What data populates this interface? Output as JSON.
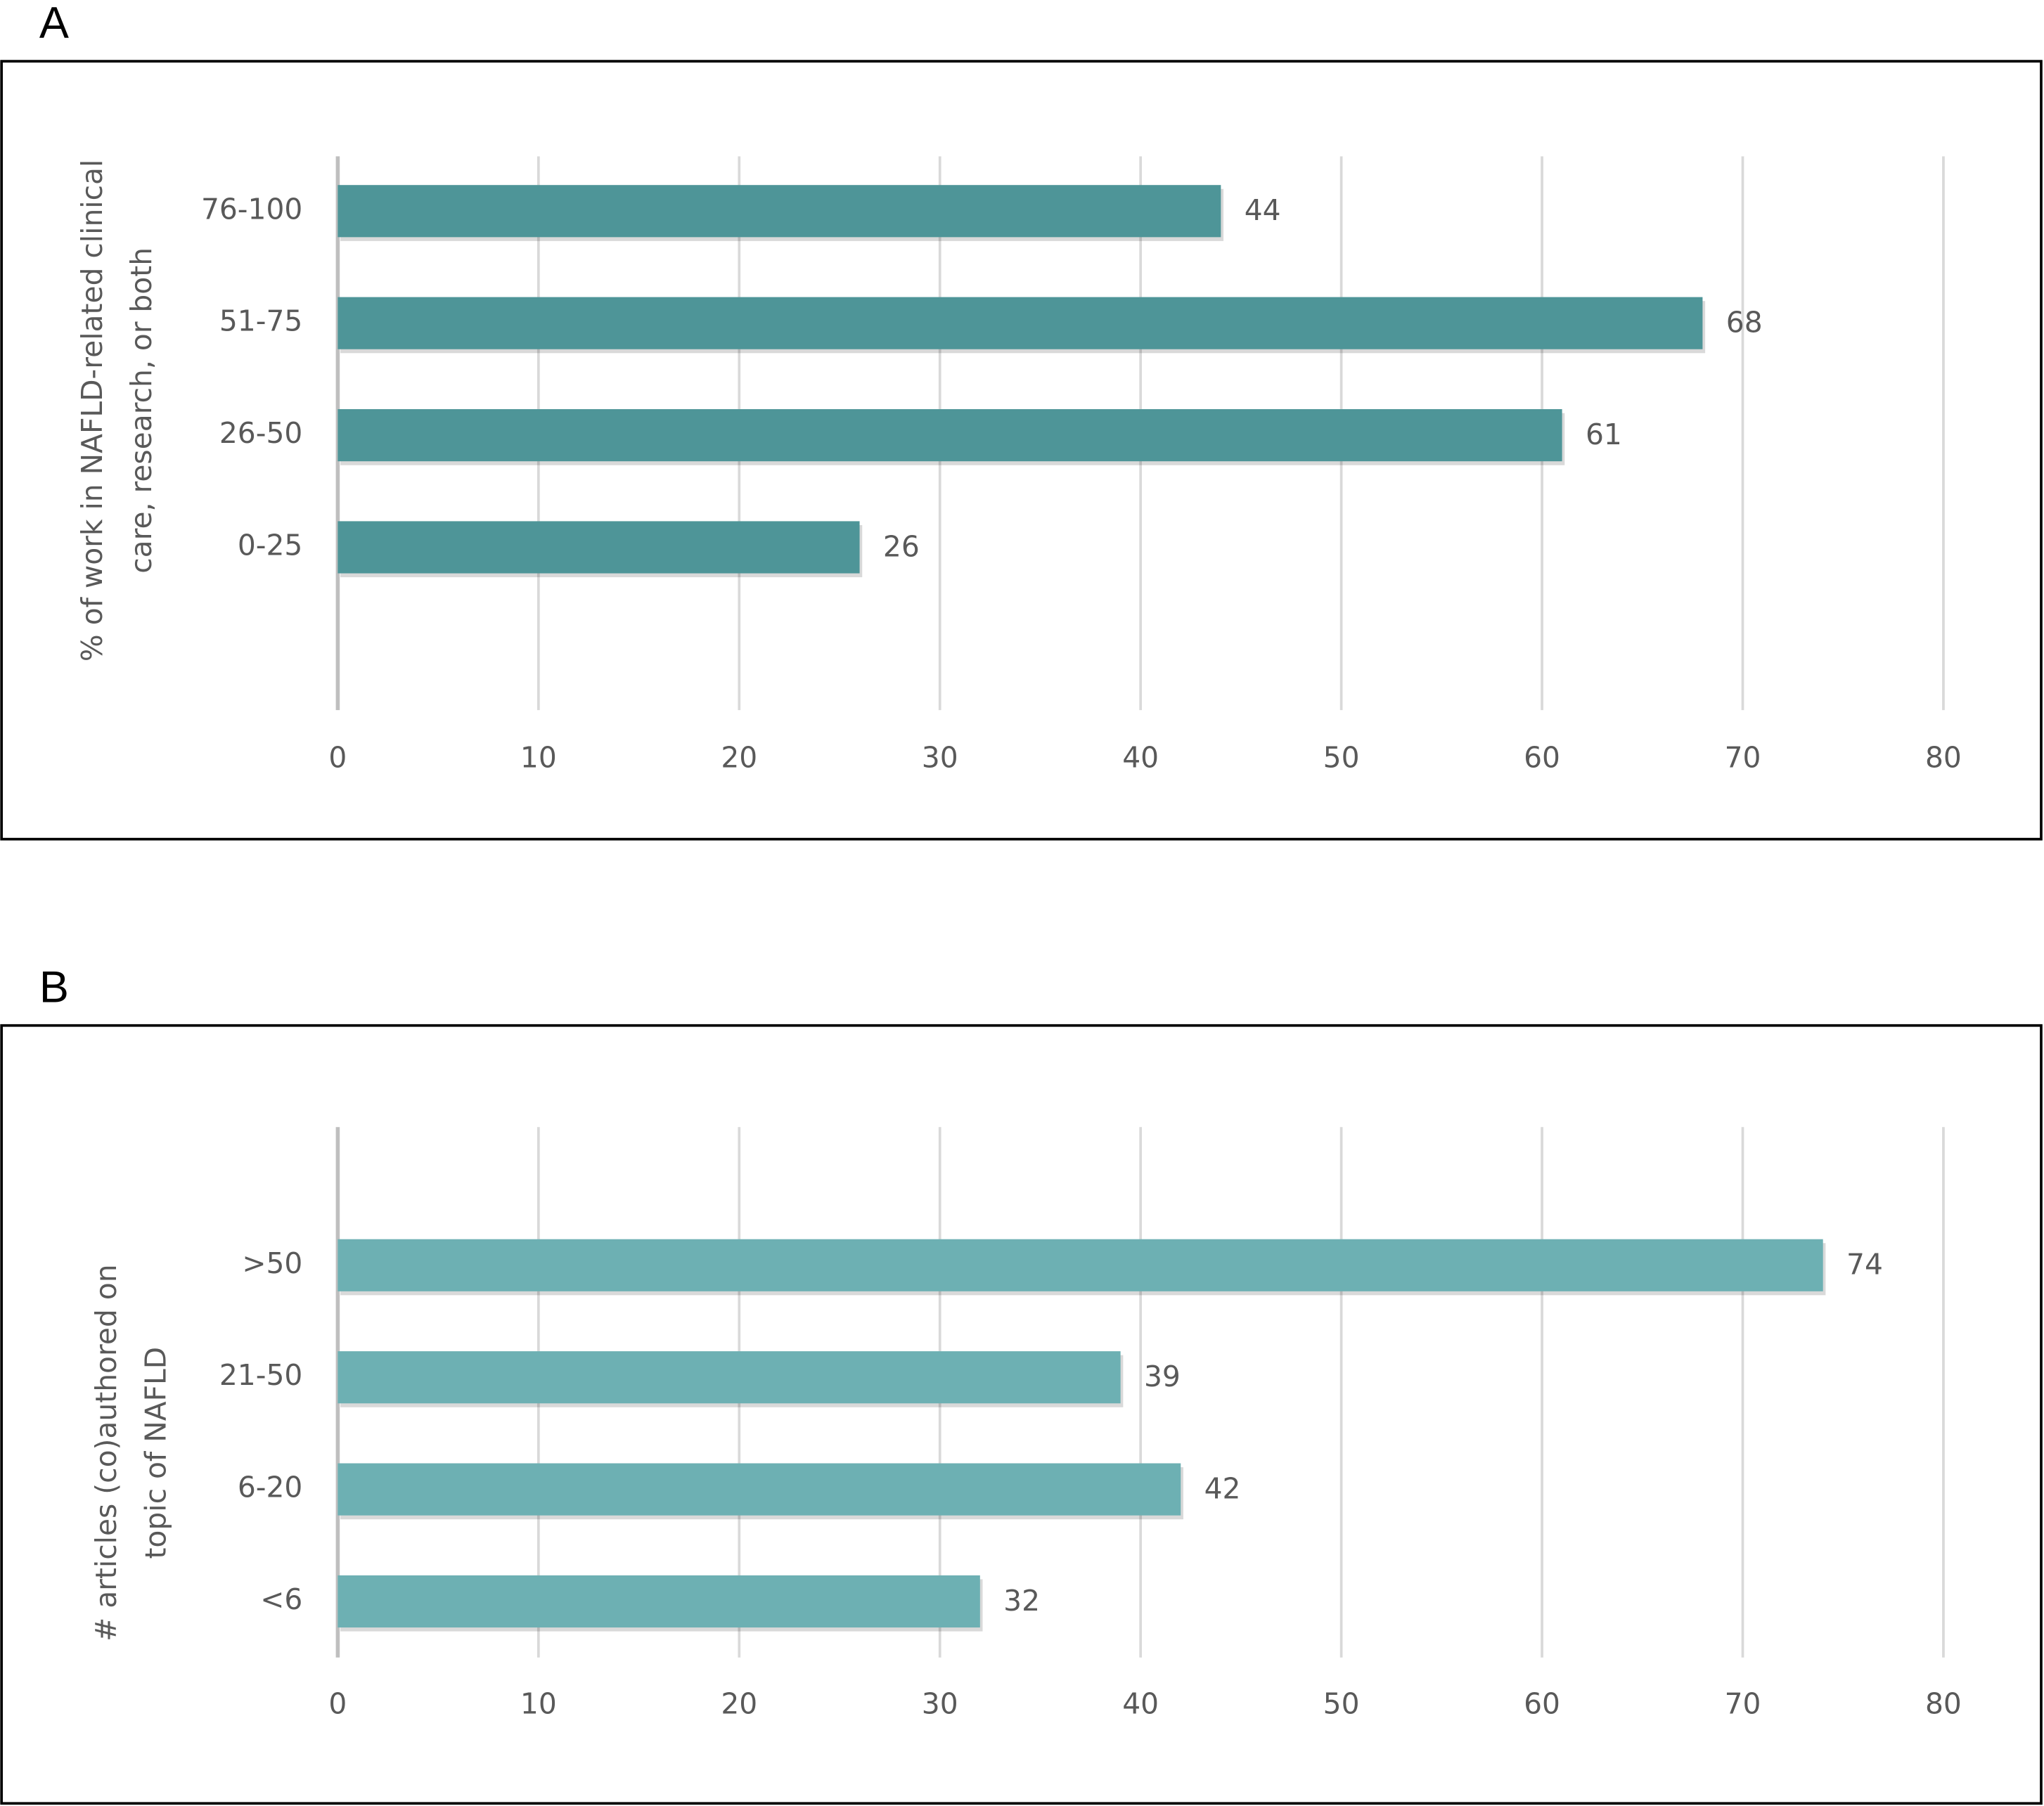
{
  "chart_data": [
    {
      "type": "bar",
      "orientation": "horizontal",
      "label": "A",
      "y_label": [
        "% of work in NAFLD-related clinical",
        "care, research, or both"
      ],
      "categories": [
        "76-100",
        "51-75",
        "26-50",
        "0-25"
      ],
      "values": [
        44,
        68,
        61,
        26
      ],
      "color": "#4e9598",
      "xlim": [
        0,
        80
      ],
      "xticks": [
        0,
        10,
        20,
        30,
        40,
        50,
        60,
        70,
        80
      ],
      "grid": true
    },
    {
      "type": "bar",
      "orientation": "horizontal",
      "label": "B",
      "y_label": [
        "# articles (co)authored on",
        "topic of NAFLD"
      ],
      "categories": [
        ">50",
        "21-50",
        "6-20",
        "<6"
      ],
      "values": [
        74,
        39,
        42,
        32
      ],
      "color": "#6db0b3",
      "xlim": [
        0,
        80
      ],
      "xticks": [
        0,
        10,
        20,
        30,
        40,
        50,
        60,
        70,
        80
      ],
      "grid": true
    }
  ]
}
